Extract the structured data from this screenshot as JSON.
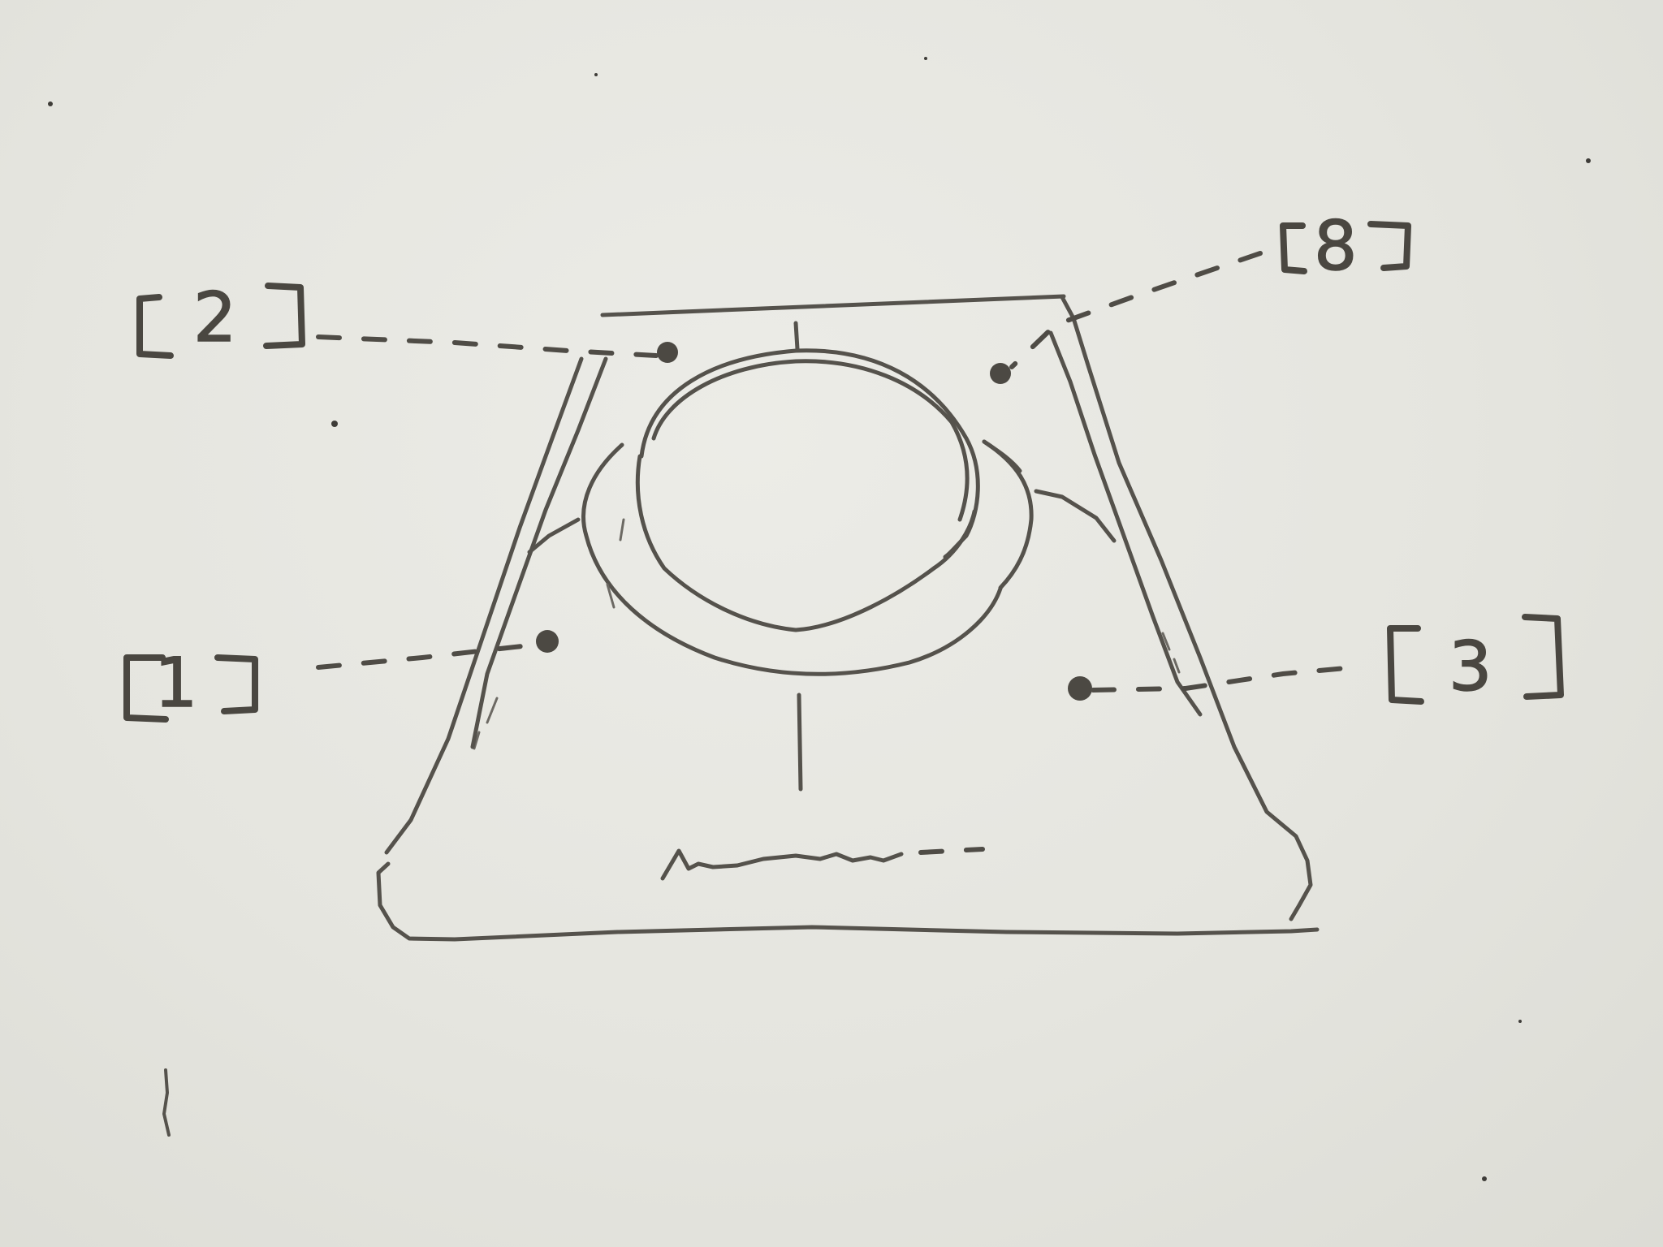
{
  "diagram": {
    "callouts": [
      {
        "id": "1",
        "text": "1"
      },
      {
        "id": "2",
        "text": "2"
      },
      {
        "id": "3",
        "text": "3"
      },
      {
        "id": "8",
        "text": "8"
      }
    ]
  },
  "colors": {
    "board": "#e6e6e0",
    "marker_ink": "#55524c"
  }
}
